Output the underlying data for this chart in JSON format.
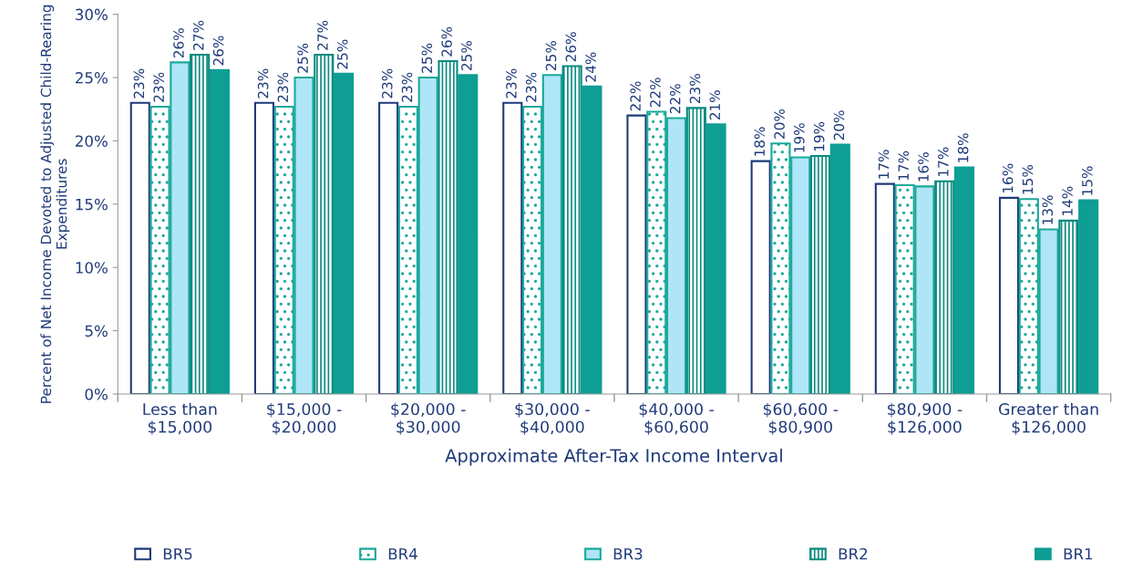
{
  "chart_data": {
    "type": "bar",
    "xlabel": "Approximate After-Tax Income Interval",
    "ylabel": "Percent of Net Income Devoted to Adjusted Child-Rearing Expenditures",
    "categories": [
      "Less than\n$15,000",
      "$15,000 -\n$20,000",
      "$20,000 -\n$30,000",
      "$30,000 -\n$40,000",
      "$40,000 -\n$60,600",
      "$60,600 -\n$80,900",
      "$80,900 -\n$126,000",
      "Greater than\n$126,000"
    ],
    "series": [
      {
        "name": "BR5",
        "color": "#1f3a7a",
        "values": [
          23.0,
          23.0,
          23.0,
          23.0,
          22.0,
          18.4,
          16.6,
          15.5
        ],
        "value_labels": [
          "23%",
          "23%",
          "23%",
          "23%",
          "22%",
          "18%",
          "17%",
          "16%"
        ]
      },
      {
        "name": "BR4",
        "color": "#1aa99a",
        "values": [
          22.7,
          22.7,
          22.7,
          22.7,
          22.3,
          19.8,
          16.5,
          15.4
        ],
        "value_labels": [
          "23%",
          "23%",
          "23%",
          "23%",
          "22%",
          "20%",
          "17%",
          "15%"
        ]
      },
      {
        "name": "BR3",
        "color": "#aee6f7",
        "values": [
          26.2,
          25.0,
          25.0,
          25.2,
          21.8,
          18.7,
          16.4,
          13.0
        ],
        "value_labels": [
          "26%",
          "25%",
          "25%",
          "25%",
          "22%",
          "19%",
          "16%",
          "13%"
        ]
      },
      {
        "name": "BR2",
        "color": "#0a8a80",
        "values": [
          26.8,
          26.8,
          26.3,
          25.9,
          22.6,
          18.8,
          16.8,
          13.7
        ],
        "value_labels": [
          "27%",
          "27%",
          "26%",
          "26%",
          "23%",
          "19%",
          "17%",
          "14%"
        ]
      },
      {
        "name": "BR1",
        "color": "#0e9e94",
        "values": [
          25.6,
          25.3,
          25.2,
          24.3,
          21.3,
          19.7,
          17.9,
          15.3
        ],
        "value_labels": [
          "26%",
          "25%",
          "25%",
          "24%",
          "21%",
          "20%",
          "18%",
          "15%"
        ]
      }
    ],
    "ylim": [
      0,
      30
    ],
    "yticks": [
      {
        "value": 0,
        "label": "0%"
      },
      {
        "value": 5,
        "label": "5%"
      },
      {
        "value": 10,
        "label": "10%"
      },
      {
        "value": 15,
        "label": "15%"
      },
      {
        "value": 20,
        "label": "20%"
      },
      {
        "value": 25,
        "label": "25%"
      },
      {
        "value": 30,
        "label": "30%"
      }
    ],
    "grid": false,
    "legend": "bottom"
  }
}
